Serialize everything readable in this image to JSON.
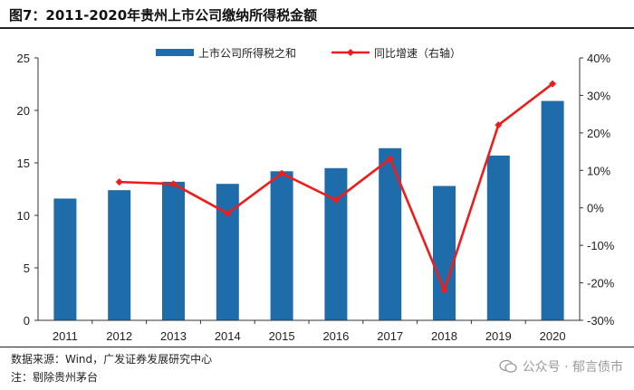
{
  "title": "图7：2011-2020年贵州上市公司缴纳所得税金额",
  "source_note": "数据来源：Wind，广发证券发展研究中心",
  "footnote": "注：剔除贵州茅台",
  "watermark": "公众号 · 郁言债市",
  "colors": {
    "bar": "#1f6cab",
    "line": "#ee1c1c",
    "axis": "#333333"
  },
  "chart_data": {
    "type": "bar+line",
    "categories": [
      "2011",
      "2012",
      "2013",
      "2014",
      "2015",
      "2016",
      "2017",
      "2018",
      "2019",
      "2020"
    ],
    "series": [
      {
        "name": "上市公司所得税之和",
        "type": "bar",
        "axis": "left",
        "values": [
          11.6,
          12.4,
          13.2,
          13.0,
          14.2,
          14.5,
          16.4,
          12.8,
          15.7,
          20.9
        ]
      },
      {
        "name": "同比增速（右轴）",
        "type": "line",
        "axis": "right",
        "values": [
          null,
          6.9,
          6.4,
          -1.5,
          9.2,
          2.1,
          13.1,
          -21.9,
          22.1,
          33.1
        ]
      }
    ],
    "left_axis": {
      "min": 0,
      "max": 25,
      "ticks": [
        "0",
        "5",
        "10",
        "15",
        "20",
        "25"
      ]
    },
    "right_axis": {
      "min": -30,
      "max": 40,
      "ticks": [
        "-30%",
        "-20%",
        "-10%",
        "0%",
        "10%",
        "20%",
        "30%",
        "40%"
      ]
    },
    "legend": [
      "上市公司所得税之和",
      "同比增速（右轴）"
    ]
  }
}
